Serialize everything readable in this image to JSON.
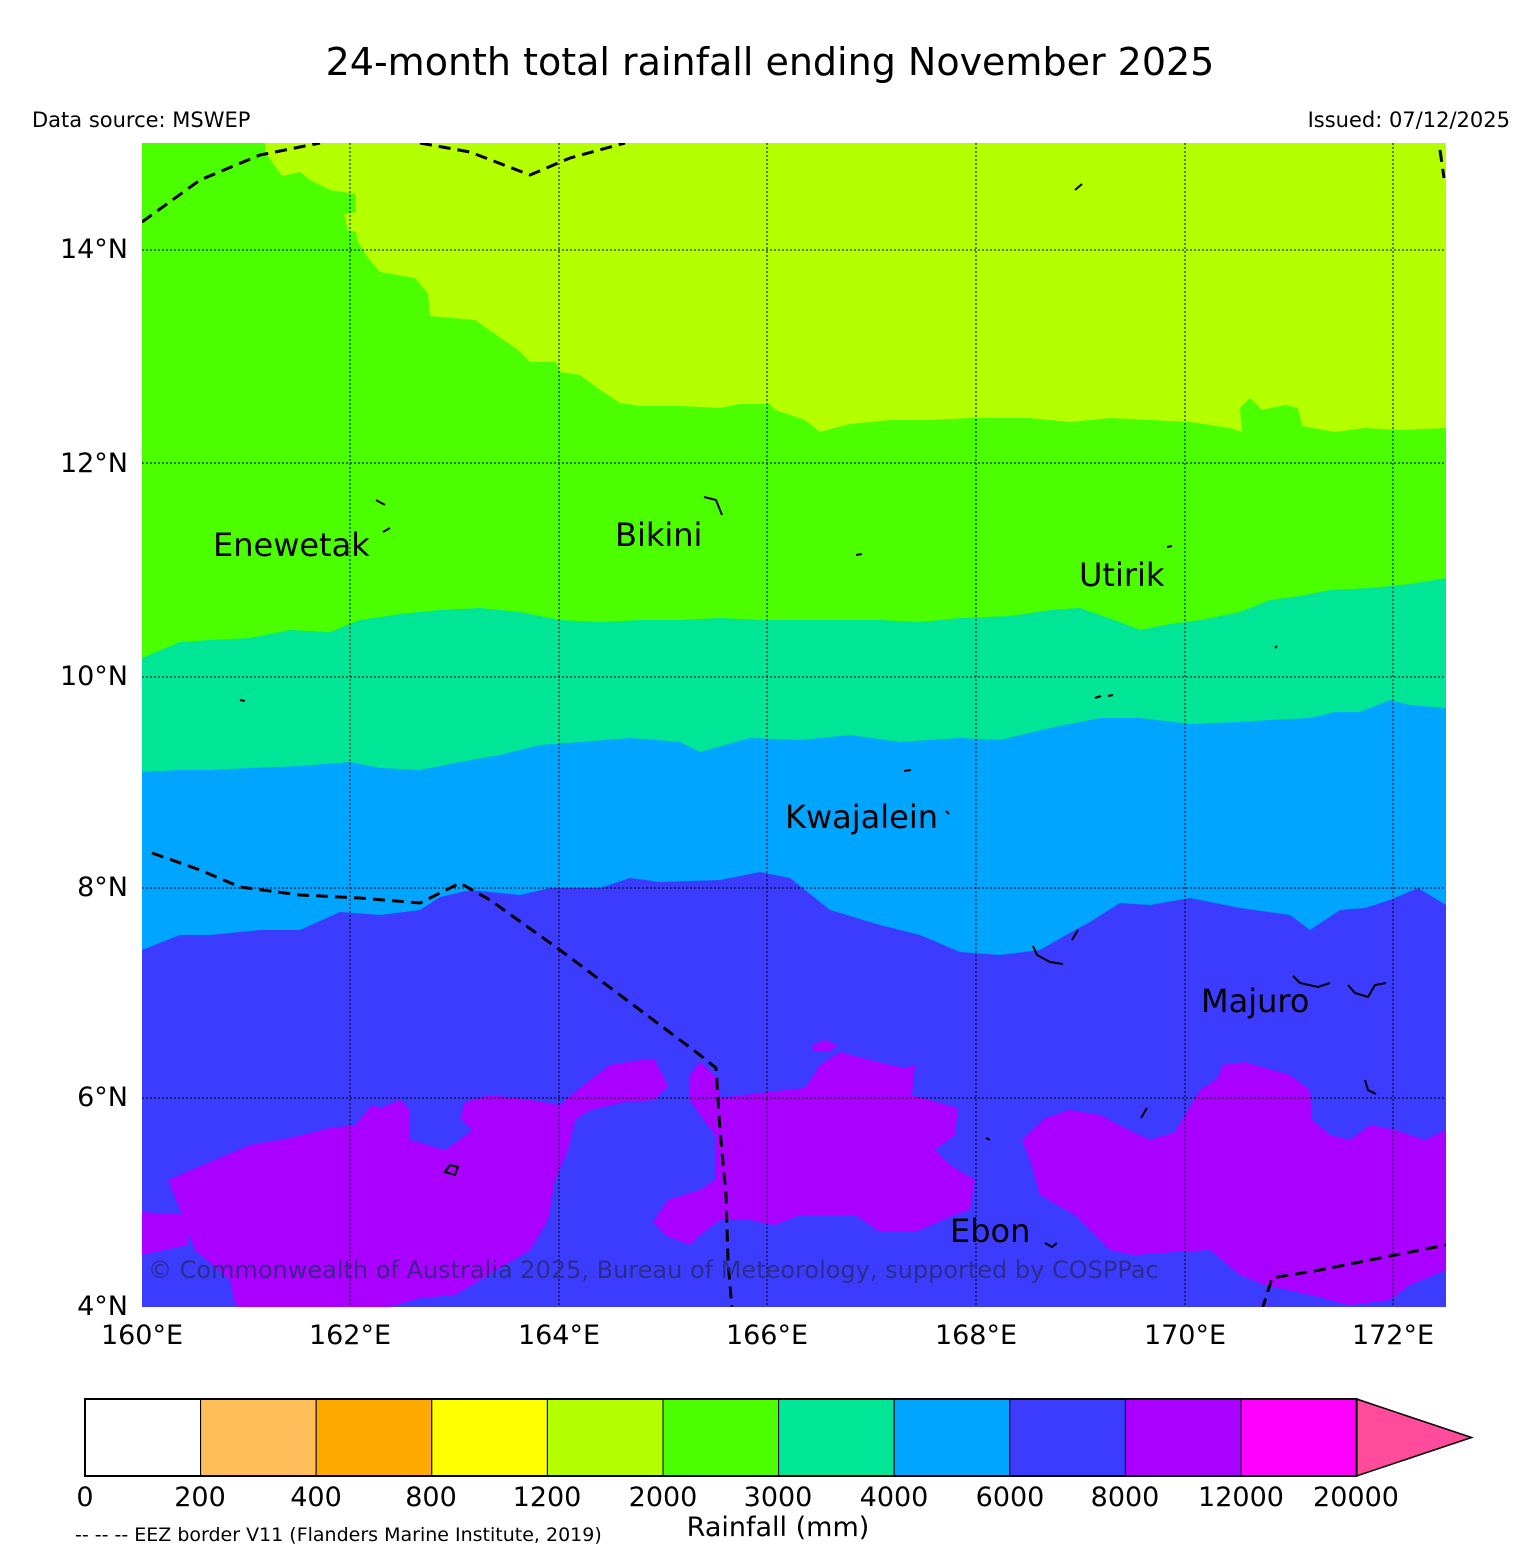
{
  "title": "24-month total rainfall ending November 2025",
  "data_source": "Data source: MSWEP",
  "issued": "Issued: 07/12/2025",
  "latitude_labels": [
    "14°N",
    "12°N",
    "10°N",
    "8°N",
    "6°N",
    "4°N"
  ],
  "longitude_labels": [
    "160°E",
    "162°E",
    "164°E",
    "166°E",
    "168°E",
    "170°E",
    "172°E"
  ],
  "place_labels": {
    "enewetak": "Enewetak",
    "bikini": "Bikini",
    "utirik": "Utirik",
    "kwajalein": "Kwajalein",
    "majuro": "Majuro",
    "ebon": "Ebon"
  },
  "copyright": "© Commonwealth of Australia 2025, Bureau of Meteorology, supported by COSPPac",
  "colorbar": {
    "label": "Rainfall (mm)",
    "ticks": [
      "0",
      "200",
      "400",
      "800",
      "1200",
      "2000",
      "3000",
      "4000",
      "6000",
      "8000",
      "12000",
      "20000"
    ],
    "colors": [
      "#ffffff",
      "#ffbe5a",
      "#ffaa00",
      "#ffff00",
      "#b4ff00",
      "#4bff00",
      "#00e696",
      "#00a5ff",
      "#3c3cff",
      "#aa00ff",
      "#ff00ff",
      "#ff4b9b"
    ]
  },
  "legend_note": "-- -- -- EEZ border V11 (Flanders Marine Institute, 2019)",
  "rainfall_zone_colors": {
    "band_1200_2000": "#b4ff00",
    "band_2000_3000": "#4bff00",
    "band_3000_4000": "#00e696",
    "band_4000_6000": "#00a5ff",
    "band_6000_8000": "#3c3cff",
    "band_8000_12000": "#aa00ff"
  }
}
